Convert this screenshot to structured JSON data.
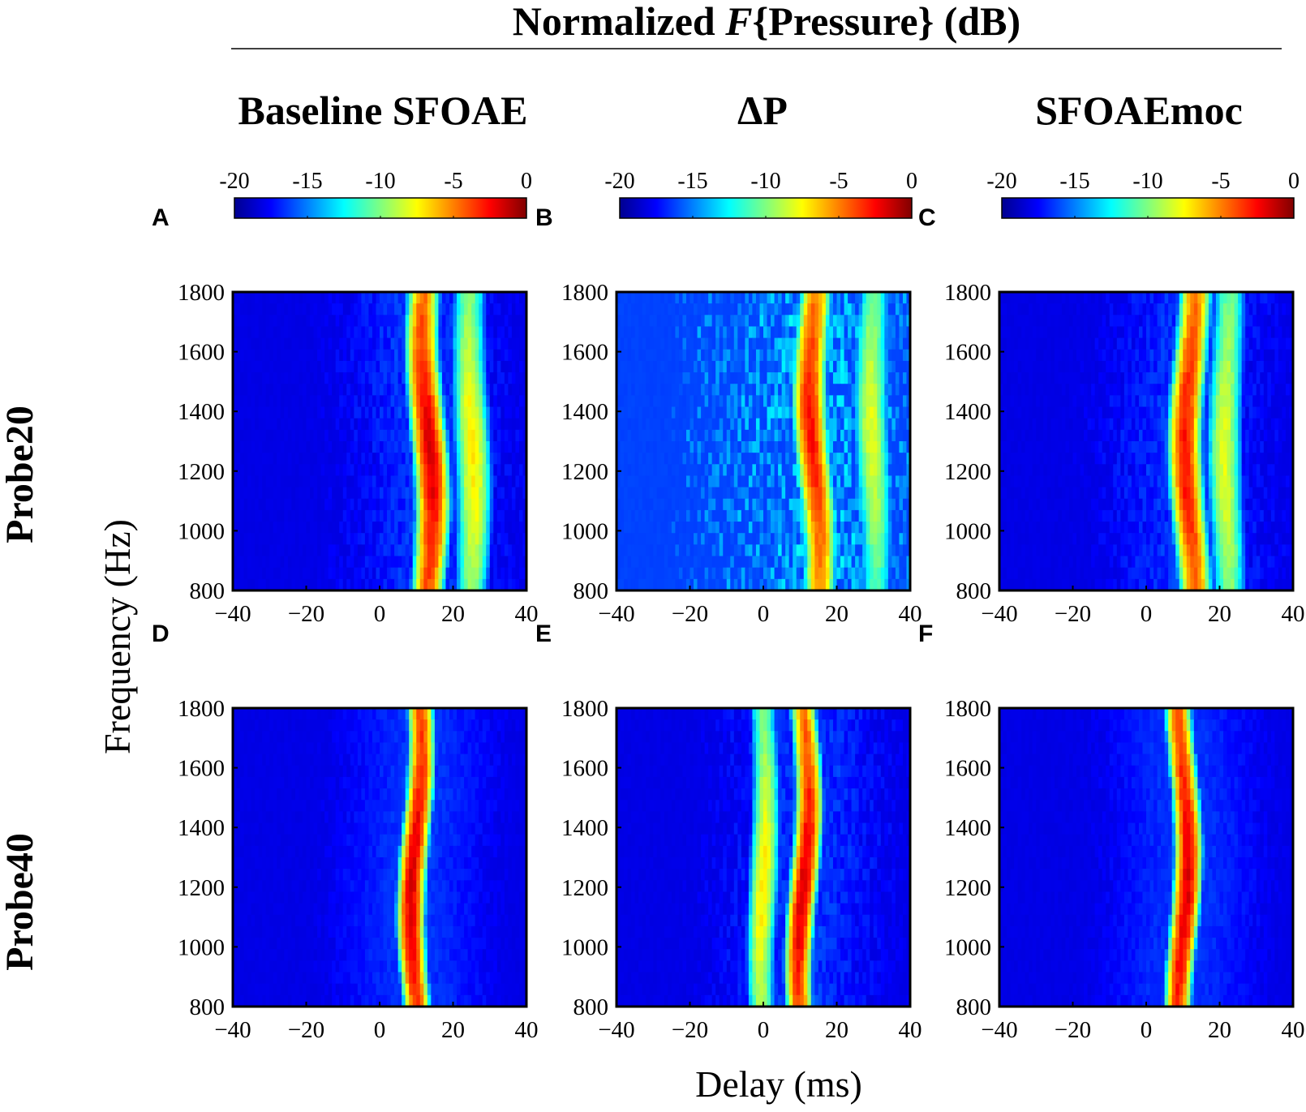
{
  "figure": {
    "title_prefix": "Normalized ",
    "title_italic": "F",
    "title_suffix": "{Pressure} (dB)",
    "column_titles": [
      "Baseline SFOAE",
      "ΔP",
      "SFOAEmoc"
    ],
    "row_labels": [
      "Probe20",
      "Probe40"
    ],
    "xlabel": "Delay (ms)",
    "ylabel": "Frequency (Hz)",
    "colorbar": {
      "range": [
        -20,
        0
      ],
      "tick_labels": [
        "-20",
        "-15",
        "-10",
        "-5",
        "0"
      ],
      "colormap": "jet",
      "units": "dB"
    }
  },
  "chart_data": [
    {
      "panel": "A",
      "type": "heatmap",
      "row": "Probe20",
      "column": "Baseline SFOAE",
      "x_range": [
        -40,
        40
      ],
      "y_range": [
        800,
        1800
      ],
      "x_ticks": [
        "−40",
        "−20",
        "0",
        "20",
        "40"
      ],
      "y_ticks": [
        "1800",
        "1600",
        "1400",
        "1200",
        "1000",
        "800"
      ],
      "peak_delay_ms": 13,
      "peak_width_ms": 5,
      "peak_level_db_range": [
        -6,
        -2
      ],
      "strongest_freq_hz": 1250,
      "secondary_ridge_delay_ms": 25,
      "background_db": -20,
      "noise": 0.1
    },
    {
      "panel": "B",
      "type": "heatmap",
      "row": "Probe20",
      "column": "ΔP",
      "x_range": [
        -40,
        40
      ],
      "y_range": [
        800,
        1800
      ],
      "x_ticks": [
        "−40",
        "−20",
        "0",
        "20",
        "40"
      ],
      "y_ticks": [
        "1800",
        "1600",
        "1400",
        "1200",
        "1000",
        "800"
      ],
      "peak_delay_ms": 14,
      "peak_width_ms": 5,
      "peak_level_db_range": [
        -7,
        -3
      ],
      "strongest_freq_hz": 1350,
      "secondary_ridge_delay_ms": 30,
      "background_db": -18,
      "noise": 0.3
    },
    {
      "panel": "C",
      "type": "heatmap",
      "row": "Probe20",
      "column": "SFOAEmoc",
      "x_range": [
        -40,
        40
      ],
      "y_range": [
        800,
        1800
      ],
      "x_ticks": [
        "−40",
        "−20",
        "0",
        "20",
        "40"
      ],
      "y_ticks": [
        "1800",
        "1600",
        "1400",
        "1200",
        "1000",
        "800"
      ],
      "peak_delay_ms": 12,
      "peak_width_ms": 5,
      "peak_level_db_range": [
        -6,
        -3
      ],
      "strongest_freq_hz": 1250,
      "secondary_ridge_delay_ms": 22,
      "background_db": -20,
      "noise": 0.1
    },
    {
      "panel": "D",
      "type": "heatmap",
      "row": "Probe40",
      "column": "Baseline SFOAE",
      "x_range": [
        -40,
        40
      ],
      "y_range": [
        800,
        1800
      ],
      "x_ticks": [
        "−40",
        "−20",
        "0",
        "20",
        "40"
      ],
      "y_ticks": [
        "1800",
        "1600",
        "1400",
        "1200",
        "1000",
        "800"
      ],
      "peak_delay_ms": 10,
      "peak_width_ms": 4,
      "peak_level_db_range": [
        -5,
        -2
      ],
      "strongest_freq_hz": 1200,
      "secondary_ridge_delay_ms": null,
      "background_db": -20,
      "noise": 0.05
    },
    {
      "panel": "E",
      "type": "heatmap",
      "row": "Probe40",
      "column": "ΔP",
      "x_range": [
        -40,
        40
      ],
      "y_range": [
        800,
        1800
      ],
      "x_ticks": [
        "−40",
        "−20",
        "0",
        "20",
        "40"
      ],
      "y_ticks": [
        "1800",
        "1600",
        "1400",
        "1200",
        "1000",
        "800"
      ],
      "peak_delay_ms": 11,
      "peak_width_ms": 4,
      "peak_level_db_range": [
        -6,
        -2
      ],
      "strongest_freq_hz": 1200,
      "secondary_ridge_delay_ms": 0,
      "background_db": -20,
      "noise": 0.1
    },
    {
      "panel": "F",
      "type": "heatmap",
      "row": "Probe40",
      "column": "SFOAEmoc",
      "x_range": [
        -40,
        40
      ],
      "y_range": [
        800,
        1800
      ],
      "x_ticks": [
        "−40",
        "−20",
        "0",
        "20",
        "40"
      ],
      "y_ticks": [
        "1800",
        "1600",
        "1400",
        "1200",
        "1000",
        "800"
      ],
      "peak_delay_ms": 10,
      "peak_width_ms": 4,
      "peak_level_db_range": [
        -5,
        -2
      ],
      "strongest_freq_hz": 1200,
      "secondary_ridge_delay_ms": null,
      "background_db": -20,
      "noise": 0.05
    }
  ]
}
